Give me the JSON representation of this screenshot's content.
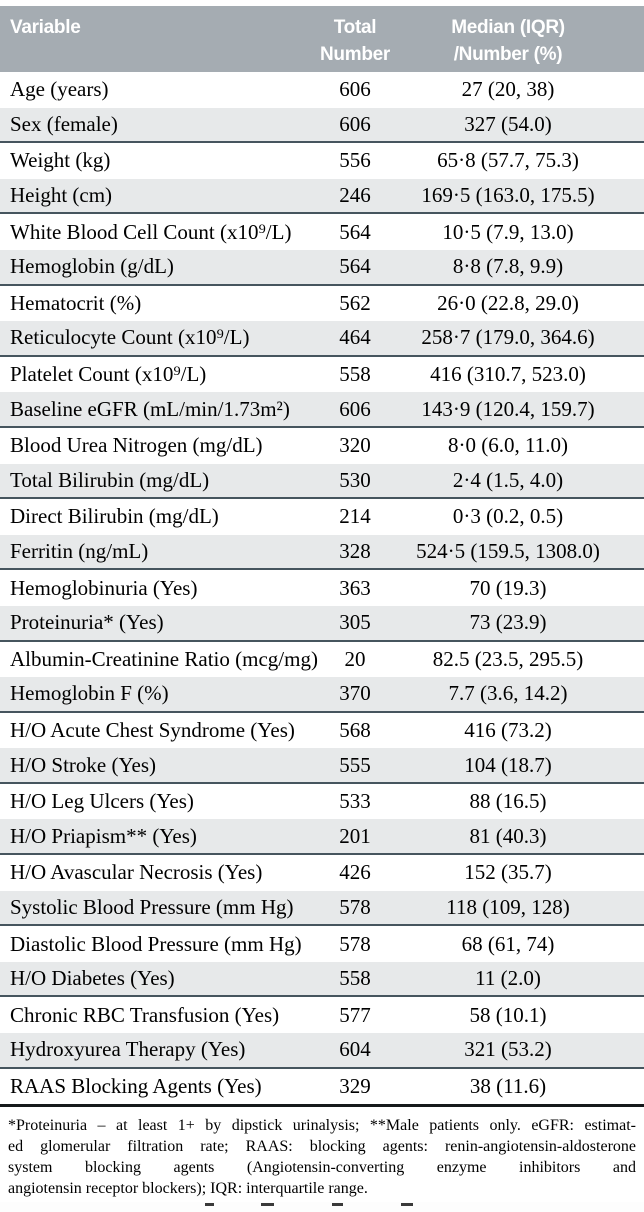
{
  "colors": {
    "header_bg": "#a5acb2",
    "alt_row_bg": "#e7e9ea",
    "divider": "#46555e",
    "table_border": "#16191b",
    "header_text": "#ffffff"
  },
  "table": {
    "header": {
      "variable": "Variable",
      "total_line1": "Total",
      "total_line2": "Number",
      "median_line1": "Median (IQR)",
      "median_line2": "/Number (%)"
    },
    "rows": [
      {
        "variable": "Age (years)",
        "total_number": "606",
        "value": "27 (20, 38)"
      },
      {
        "variable": "Sex (female)",
        "total_number": "606",
        "value": "327 (54.0)"
      },
      {
        "variable": "Weight (kg)",
        "total_number": "556",
        "value": "65·8 (57.7, 75.3)"
      },
      {
        "variable": "Height (cm)",
        "total_number": "246",
        "value": "169·5 (163.0, 175.5)"
      },
      {
        "variable": "White Blood Cell Count (x10⁹/L)",
        "total_number": "564",
        "value": "10·5 (7.9, 13.0)"
      },
      {
        "variable": "Hemoglobin (g/dL)",
        "total_number": "564",
        "value": "8·8 (7.8, 9.9)"
      },
      {
        "variable": "Hematocrit (%)",
        "total_number": "562",
        "value": "26·0 (22.8, 29.0)"
      },
      {
        "variable": "Reticulocyte Count (x10⁹/L)",
        "total_number": "464",
        "value": "258·7 (179.0, 364.6)"
      },
      {
        "variable": "Platelet Count (x10⁹/L)",
        "total_number": "558",
        "value": "416 (310.7, 523.0)"
      },
      {
        "variable": "Baseline eGFR (mL/min/1.73m²)",
        "total_number": "606",
        "value": "143·9 (120.4, 159.7)"
      },
      {
        "variable": "Blood Urea Nitrogen (mg/dL)",
        "total_number": "320",
        "value": "8·0 (6.0, 11.0)"
      },
      {
        "variable": "Total Bilirubin (mg/dL)",
        "total_number": "530",
        "value": "2·4 (1.5, 4.0)"
      },
      {
        "variable": "Direct Bilirubin (mg/dL)",
        "total_number": "214",
        "value": "0·3 (0.2, 0.5)"
      },
      {
        "variable": "Ferritin (ng/mL)",
        "total_number": "328",
        "value": "524·5 (159.5, 1308.0)"
      },
      {
        "variable": "Hemoglobinuria (Yes)",
        "total_number": "363",
        "value": "70 (19.3)"
      },
      {
        "variable": "Proteinuria* (Yes)",
        "total_number": "305",
        "value": "73 (23.9)"
      },
      {
        "variable": "Albumin-Creatinine Ratio (mcg/mg)",
        "total_number": "20",
        "value": "82.5 (23.5, 295.5)"
      },
      {
        "variable": "Hemoglobin F (%)",
        "total_number": "370",
        "value": "7.7 (3.6, 14.2)"
      },
      {
        "variable": "H/O Acute Chest Syndrome (Yes)",
        "total_number": "568",
        "value": "416 (73.2)"
      },
      {
        "variable": "H/O Stroke (Yes)",
        "total_number": "555",
        "value": "104 (18.7)"
      },
      {
        "variable": "H/O Leg Ulcers (Yes)",
        "total_number": "533",
        "value": "88 (16.5)"
      },
      {
        "variable": "H/O Priapism** (Yes)",
        "total_number": "201",
        "value": "81 (40.3)"
      },
      {
        "variable": "H/O Avascular Necrosis (Yes)",
        "total_number": "426",
        "value": "152 (35.7)"
      },
      {
        "variable": "Systolic Blood Pressure (mm Hg)",
        "total_number": "578",
        "value": "118 (109, 128)"
      },
      {
        "variable": "Diastolic Blood Pressure (mm Hg)",
        "total_number": "578",
        "value": "68 (61, 74)"
      },
      {
        "variable": "H/O Diabetes (Yes)",
        "total_number": "558",
        "value": "11 (2.0)"
      },
      {
        "variable": "Chronic RBC Transfusion (Yes)",
        "total_number": "577",
        "value": "58 (10.1)"
      },
      {
        "variable": "Hydroxyurea Therapy (Yes)",
        "total_number": "604",
        "value": "321 (53.2)"
      },
      {
        "variable": "RAAS Blocking Agents (Yes)",
        "total_number": "329",
        "value": "38 (11.6)"
      }
    ]
  },
  "footnote": {
    "lines": [
      "*Proteinuria – at least 1+ by dipstick urinalysis; **Male patients only. eGFR: estimat-",
      "ed glomerular filtration rate; RAAS: blocking agents: renin-angiotensin-aldosterone",
      "system blocking agents (Angiotensin-converting enzyme inhibitors and",
      "angiotensin receptor blockers); IQR: interquartile range."
    ]
  }
}
